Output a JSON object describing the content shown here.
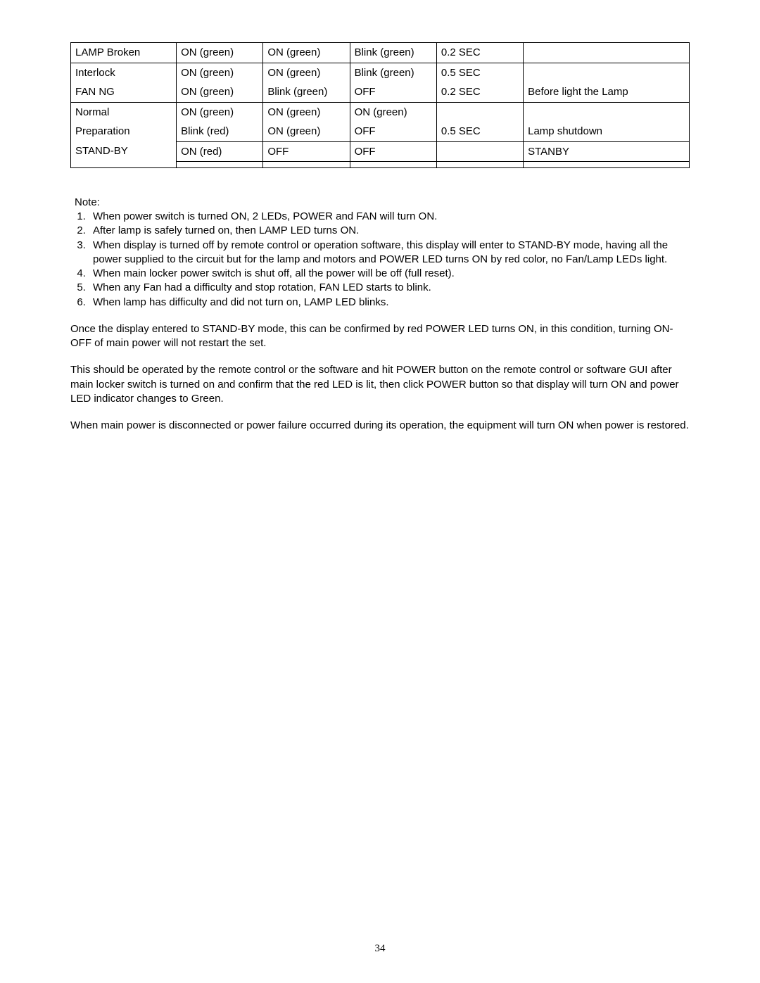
{
  "table": {
    "rows": [
      {
        "c0": "LAMP Broken",
        "c1": "ON (green)",
        "c2": "ON (green)",
        "c3": "Blink (green)",
        "c4": "0.2 SEC",
        "c5": ""
      },
      {
        "c0": "Interlock",
        "c1": "ON (green)",
        "c2": "ON (green)",
        "c3": "Blink (green)",
        "c4": "0.5 SEC",
        "c5": ""
      },
      {
        "c0": "FAN NG",
        "c1": "ON (green)",
        "c2": "Blink (green)",
        "c3": "OFF",
        "c4": "0.2 SEC",
        "c5": "Before light the Lamp"
      },
      {
        "c0": "Normal",
        "c1": "ON (green)",
        "c2": "ON (green)",
        "c3": "ON (green)",
        "c4": "",
        "c5": ""
      },
      {
        "c0": "Preparation",
        "c1": "Blink (red)",
        "c2": "ON (green)",
        "c3": "OFF",
        "c4": "0.5 SEC",
        "c5": "Lamp shutdown"
      },
      {
        "c0": "STAND-BY",
        "c1": "ON (red)",
        "c2": "OFF",
        "c3": "OFF",
        "c4": "",
        "c5": "STANBY"
      }
    ]
  },
  "note_label": "Note:",
  "notes": [
    "When power switch is turned ON, 2 LEDs, POWER and FAN will turn ON.",
    "After lamp is safely turned on, then LAMP LED turns ON.",
    "When display is turned off by remote control or operation software, this display will enter to STAND-BY mode, having all the power supplied to the circuit but for the lamp and motors and POWER LED turns ON by red color, no Fan/Lamp LEDs light.",
    "When main locker power switch is shut off, all the power will be off (full reset).",
    "When any Fan had a difficulty and stop rotation, FAN LED starts to blink.",
    "When lamp has difficulty and did not turn on, LAMP LED blinks."
  ],
  "paragraphs": [
    "Once the display entered to STAND-BY mode, this can be confirmed by red POWER LED turns ON, in this condition, turning ON-OFF of main power will not restart the set.",
    "This should be operated by the remote control or the software and hit POWER button on the remote control or software GUI after main locker switch is turned on and confirm that the red LED is lit, then click POWER button so that display will turn ON and power LED indicator changes to Green.",
    "When main power is disconnected or power failure occurred during its operation, the equipment will turn ON when power is restored."
  ],
  "page_number": "34"
}
